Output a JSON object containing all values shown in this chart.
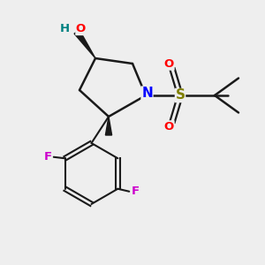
{
  "background_color": "#eeeeee",
  "bond_color": "#1a1a1a",
  "atom_colors": {
    "O": "#ff0000",
    "H_O": "#008080",
    "N": "#0000ff",
    "S": "#808000",
    "F": "#cc00cc",
    "O_s": "#ff0000"
  },
  "figsize": [
    3.0,
    3.0
  ],
  "dpi": 100
}
